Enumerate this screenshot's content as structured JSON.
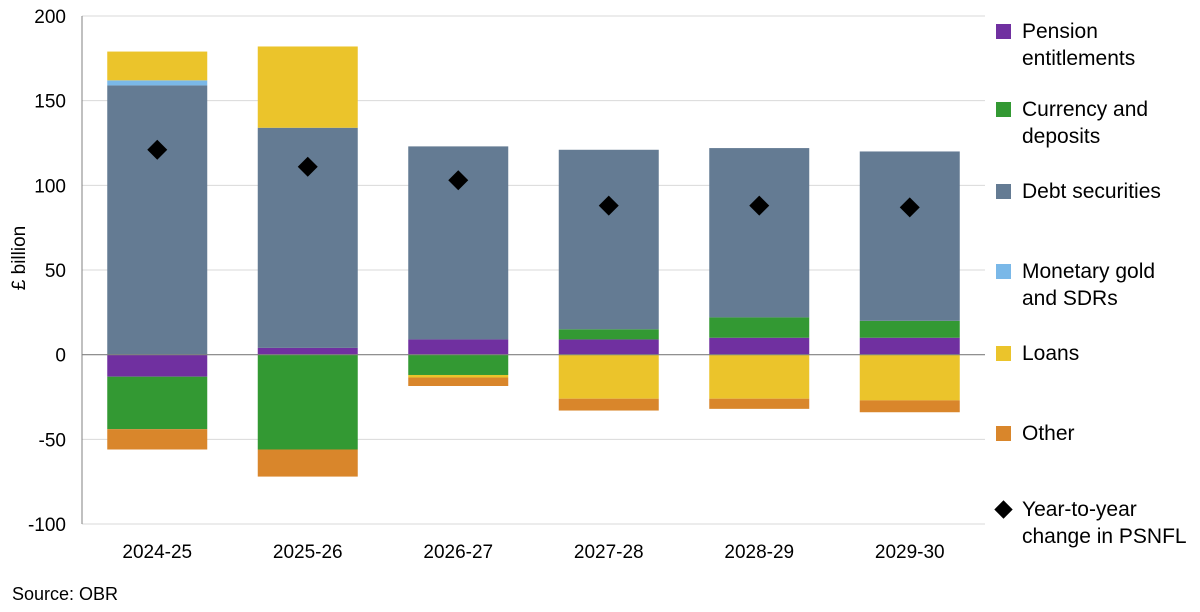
{
  "chart_data": {
    "type": "bar",
    "stacked": true,
    "categories": [
      "2024-25",
      "2025-26",
      "2026-27",
      "2027-28",
      "2028-29",
      "2029-30"
    ],
    "ylabel": "£ billion",
    "ylim": [
      -100,
      200
    ],
    "yticks": [
      200,
      150,
      100,
      50,
      0,
      -50,
      -100
    ],
    "grid": "horizontal",
    "legend_position": "right",
    "series": [
      {
        "name": "Pension\nentitlements",
        "color": "#7030a0",
        "values": [
          -13,
          4,
          9,
          9,
          10,
          10
        ]
      },
      {
        "name": "Currency and\ndeposits",
        "color": "#339933",
        "values": [
          -31,
          -56,
          -12,
          6,
          12,
          10
        ]
      },
      {
        "name": "Debt securities",
        "color": "#647b93",
        "values": [
          159,
          130,
          114,
          106,
          100,
          100
        ]
      },
      {
        "name": "Monetary gold\nand SDRs",
        "color": "#7ab8e8",
        "values": [
          3,
          0,
          0,
          0,
          0,
          0
        ]
      },
      {
        "name": "Loans",
        "color": "#ebc42b",
        "values": [
          17,
          48,
          -1.5,
          -26,
          -26,
          -27
        ]
      },
      {
        "name": "Other",
        "color": "#d9862b",
        "values": [
          -12,
          -16,
          -5,
          -7,
          -6,
          -7
        ]
      }
    ],
    "line_series": {
      "name": "Year-to-year\nchange in PSNFL",
      "marker": "diamond",
      "color": "#000000",
      "values": [
        121,
        111,
        103,
        88,
        88,
        87
      ]
    },
    "source": "Source: OBR"
  }
}
